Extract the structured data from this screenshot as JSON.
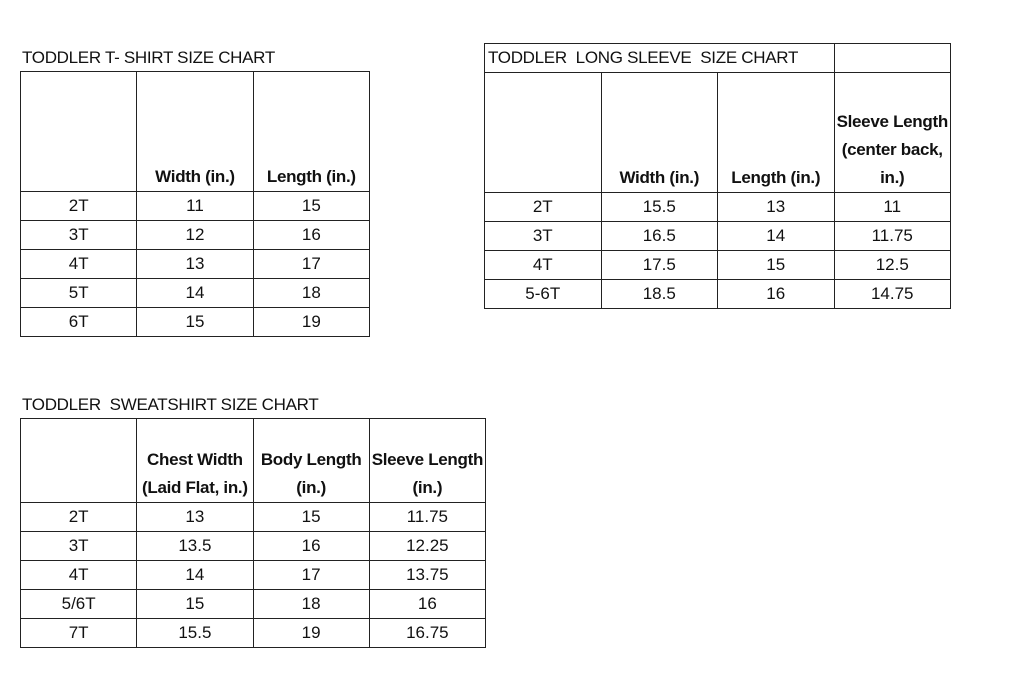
{
  "tshirt": {
    "title": "TODDLER T- SHIRT SIZE CHART",
    "headers": [
      "",
      "Width (in.)",
      "Length (in.)"
    ],
    "rows": [
      [
        "2T",
        "11",
        "15"
      ],
      [
        "3T",
        "12",
        "16"
      ],
      [
        "4T",
        "13",
        "17"
      ],
      [
        "5T",
        "14",
        "18"
      ],
      [
        "6T",
        "15",
        "19"
      ]
    ]
  },
  "longsleeve": {
    "title": "TODDLER  LONG SLEEVE  SIZE CHART",
    "headers": [
      "",
      "Width (in.)",
      "Length (in.)",
      "Sleeve Length (center back, in.)"
    ],
    "rows": [
      [
        "2T",
        "15.5",
        "13",
        "11"
      ],
      [
        "3T",
        "16.5",
        "14",
        "11.75"
      ],
      [
        "4T",
        "17.5",
        "15",
        "12.5"
      ],
      [
        "5-6T",
        "18.5",
        "16",
        "14.75"
      ]
    ]
  },
  "sweatshirt": {
    "title": "TODDLER  SWEATSHIRT SIZE CHART",
    "headers": [
      "",
      "Chest Width (Laid Flat, in.)",
      "Body Length (in.)",
      "Sleeve Length (in.)"
    ],
    "rows": [
      [
        "2T",
        "13",
        "15",
        "11.75"
      ],
      [
        "3T",
        "13.5",
        "16",
        "12.25"
      ],
      [
        "4T",
        "14",
        "17",
        "13.75"
      ],
      [
        "5/6T",
        "15",
        "18",
        "16"
      ],
      [
        "7T",
        "15.5",
        "19",
        "16.75"
      ]
    ]
  }
}
